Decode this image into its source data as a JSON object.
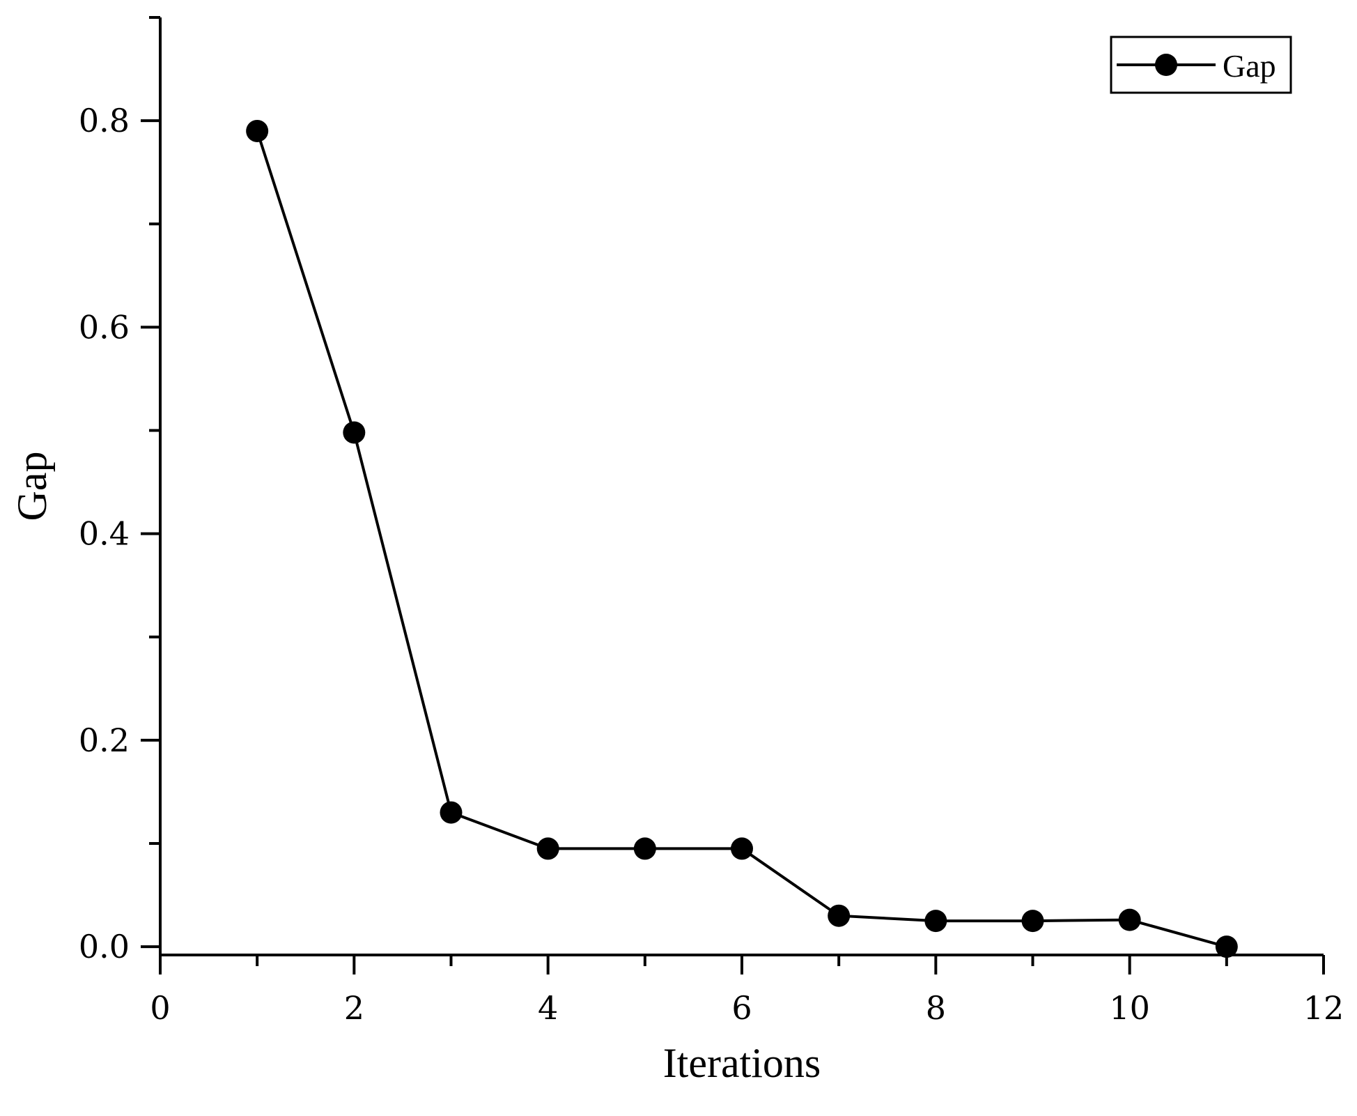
{
  "chart_data": {
    "type": "line",
    "xlabel": "Iterations",
    "ylabel": "Gap",
    "xlim": [
      0,
      12
    ],
    "ylim": [
      -0.008,
      0.9
    ],
    "xticks": [
      0,
      2,
      4,
      6,
      8,
      10,
      12
    ],
    "xtick_labels": [
      "0",
      "2",
      "4",
      "6",
      "8",
      "10",
      "12"
    ],
    "xminor_ticks": [
      1,
      3,
      5,
      7,
      9,
      11
    ],
    "yticks": [
      0.0,
      0.2,
      0.4,
      0.6,
      0.8
    ],
    "ytick_labels": [
      "0.0",
      "0.2",
      "0.4",
      "0.6",
      "0.8"
    ],
    "yminor_ticks": [
      0.1,
      0.3,
      0.5,
      0.7,
      0.9
    ],
    "grid": false,
    "legend": {
      "position": "top-right",
      "entries": [
        "Gap"
      ]
    },
    "series": [
      {
        "name": "Gap",
        "color": "#000000",
        "marker": "circle",
        "x": [
          1,
          2,
          3,
          4,
          5,
          6,
          7,
          8,
          9,
          10,
          11
        ],
        "y": [
          0.79,
          0.498,
          0.13,
          0.095,
          0.095,
          0.095,
          0.03,
          0.025,
          0.025,
          0.026,
          0.0
        ]
      }
    ]
  }
}
